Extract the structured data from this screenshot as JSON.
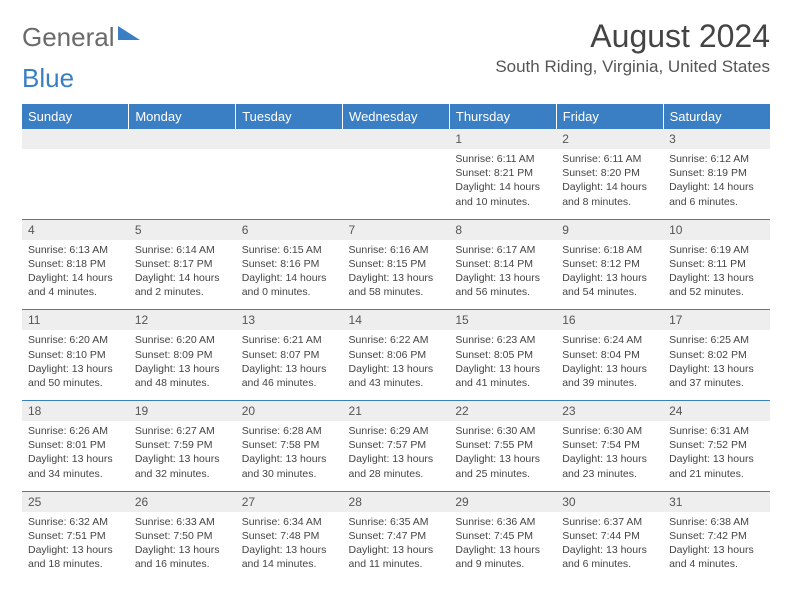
{
  "brand": {
    "part1": "General",
    "part2": "Blue"
  },
  "title": "August 2024",
  "location": "South Riding, Virginia, United States",
  "colors": {
    "header_bg": "#3a7fc4",
    "header_text": "#ffffff",
    "daynum_bg": "#eeeeee",
    "text": "#444444",
    "rule": "#3a7fc4"
  },
  "dow": [
    "Sunday",
    "Monday",
    "Tuesday",
    "Wednesday",
    "Thursday",
    "Friday",
    "Saturday"
  ],
  "weeks": [
    [
      null,
      null,
      null,
      null,
      {
        "d": "1",
        "sr": "6:11 AM",
        "ss": "8:21 PM",
        "dl": "14 hours and 10 minutes."
      },
      {
        "d": "2",
        "sr": "6:11 AM",
        "ss": "8:20 PM",
        "dl": "14 hours and 8 minutes."
      },
      {
        "d": "3",
        "sr": "6:12 AM",
        "ss": "8:19 PM",
        "dl": "14 hours and 6 minutes."
      }
    ],
    [
      {
        "d": "4",
        "sr": "6:13 AM",
        "ss": "8:18 PM",
        "dl": "14 hours and 4 minutes."
      },
      {
        "d": "5",
        "sr": "6:14 AM",
        "ss": "8:17 PM",
        "dl": "14 hours and 2 minutes."
      },
      {
        "d": "6",
        "sr": "6:15 AM",
        "ss": "8:16 PM",
        "dl": "14 hours and 0 minutes."
      },
      {
        "d": "7",
        "sr": "6:16 AM",
        "ss": "8:15 PM",
        "dl": "13 hours and 58 minutes."
      },
      {
        "d": "8",
        "sr": "6:17 AM",
        "ss": "8:14 PM",
        "dl": "13 hours and 56 minutes."
      },
      {
        "d": "9",
        "sr": "6:18 AM",
        "ss": "8:12 PM",
        "dl": "13 hours and 54 minutes."
      },
      {
        "d": "10",
        "sr": "6:19 AM",
        "ss": "8:11 PM",
        "dl": "13 hours and 52 minutes."
      }
    ],
    [
      {
        "d": "11",
        "sr": "6:20 AM",
        "ss": "8:10 PM",
        "dl": "13 hours and 50 minutes."
      },
      {
        "d": "12",
        "sr": "6:20 AM",
        "ss": "8:09 PM",
        "dl": "13 hours and 48 minutes."
      },
      {
        "d": "13",
        "sr": "6:21 AM",
        "ss": "8:07 PM",
        "dl": "13 hours and 46 minutes."
      },
      {
        "d": "14",
        "sr": "6:22 AM",
        "ss": "8:06 PM",
        "dl": "13 hours and 43 minutes."
      },
      {
        "d": "15",
        "sr": "6:23 AM",
        "ss": "8:05 PM",
        "dl": "13 hours and 41 minutes."
      },
      {
        "d": "16",
        "sr": "6:24 AM",
        "ss": "8:04 PM",
        "dl": "13 hours and 39 minutes."
      },
      {
        "d": "17",
        "sr": "6:25 AM",
        "ss": "8:02 PM",
        "dl": "13 hours and 37 minutes."
      }
    ],
    [
      {
        "d": "18",
        "sr": "6:26 AM",
        "ss": "8:01 PM",
        "dl": "13 hours and 34 minutes."
      },
      {
        "d": "19",
        "sr": "6:27 AM",
        "ss": "7:59 PM",
        "dl": "13 hours and 32 minutes."
      },
      {
        "d": "20",
        "sr": "6:28 AM",
        "ss": "7:58 PM",
        "dl": "13 hours and 30 minutes."
      },
      {
        "d": "21",
        "sr": "6:29 AM",
        "ss": "7:57 PM",
        "dl": "13 hours and 28 minutes."
      },
      {
        "d": "22",
        "sr": "6:30 AM",
        "ss": "7:55 PM",
        "dl": "13 hours and 25 minutes."
      },
      {
        "d": "23",
        "sr": "6:30 AM",
        "ss": "7:54 PM",
        "dl": "13 hours and 23 minutes."
      },
      {
        "d": "24",
        "sr": "6:31 AM",
        "ss": "7:52 PM",
        "dl": "13 hours and 21 minutes."
      }
    ],
    [
      {
        "d": "25",
        "sr": "6:32 AM",
        "ss": "7:51 PM",
        "dl": "13 hours and 18 minutes."
      },
      {
        "d": "26",
        "sr": "6:33 AM",
        "ss": "7:50 PM",
        "dl": "13 hours and 16 minutes."
      },
      {
        "d": "27",
        "sr": "6:34 AM",
        "ss": "7:48 PM",
        "dl": "13 hours and 14 minutes."
      },
      {
        "d": "28",
        "sr": "6:35 AM",
        "ss": "7:47 PM",
        "dl": "13 hours and 11 minutes."
      },
      {
        "d": "29",
        "sr": "6:36 AM",
        "ss": "7:45 PM",
        "dl": "13 hours and 9 minutes."
      },
      {
        "d": "30",
        "sr": "6:37 AM",
        "ss": "7:44 PM",
        "dl": "13 hours and 6 minutes."
      },
      {
        "d": "31",
        "sr": "6:38 AM",
        "ss": "7:42 PM",
        "dl": "13 hours and 4 minutes."
      }
    ]
  ],
  "labels": {
    "sunrise": "Sunrise:",
    "sunset": "Sunset:",
    "daylight": "Daylight:"
  }
}
